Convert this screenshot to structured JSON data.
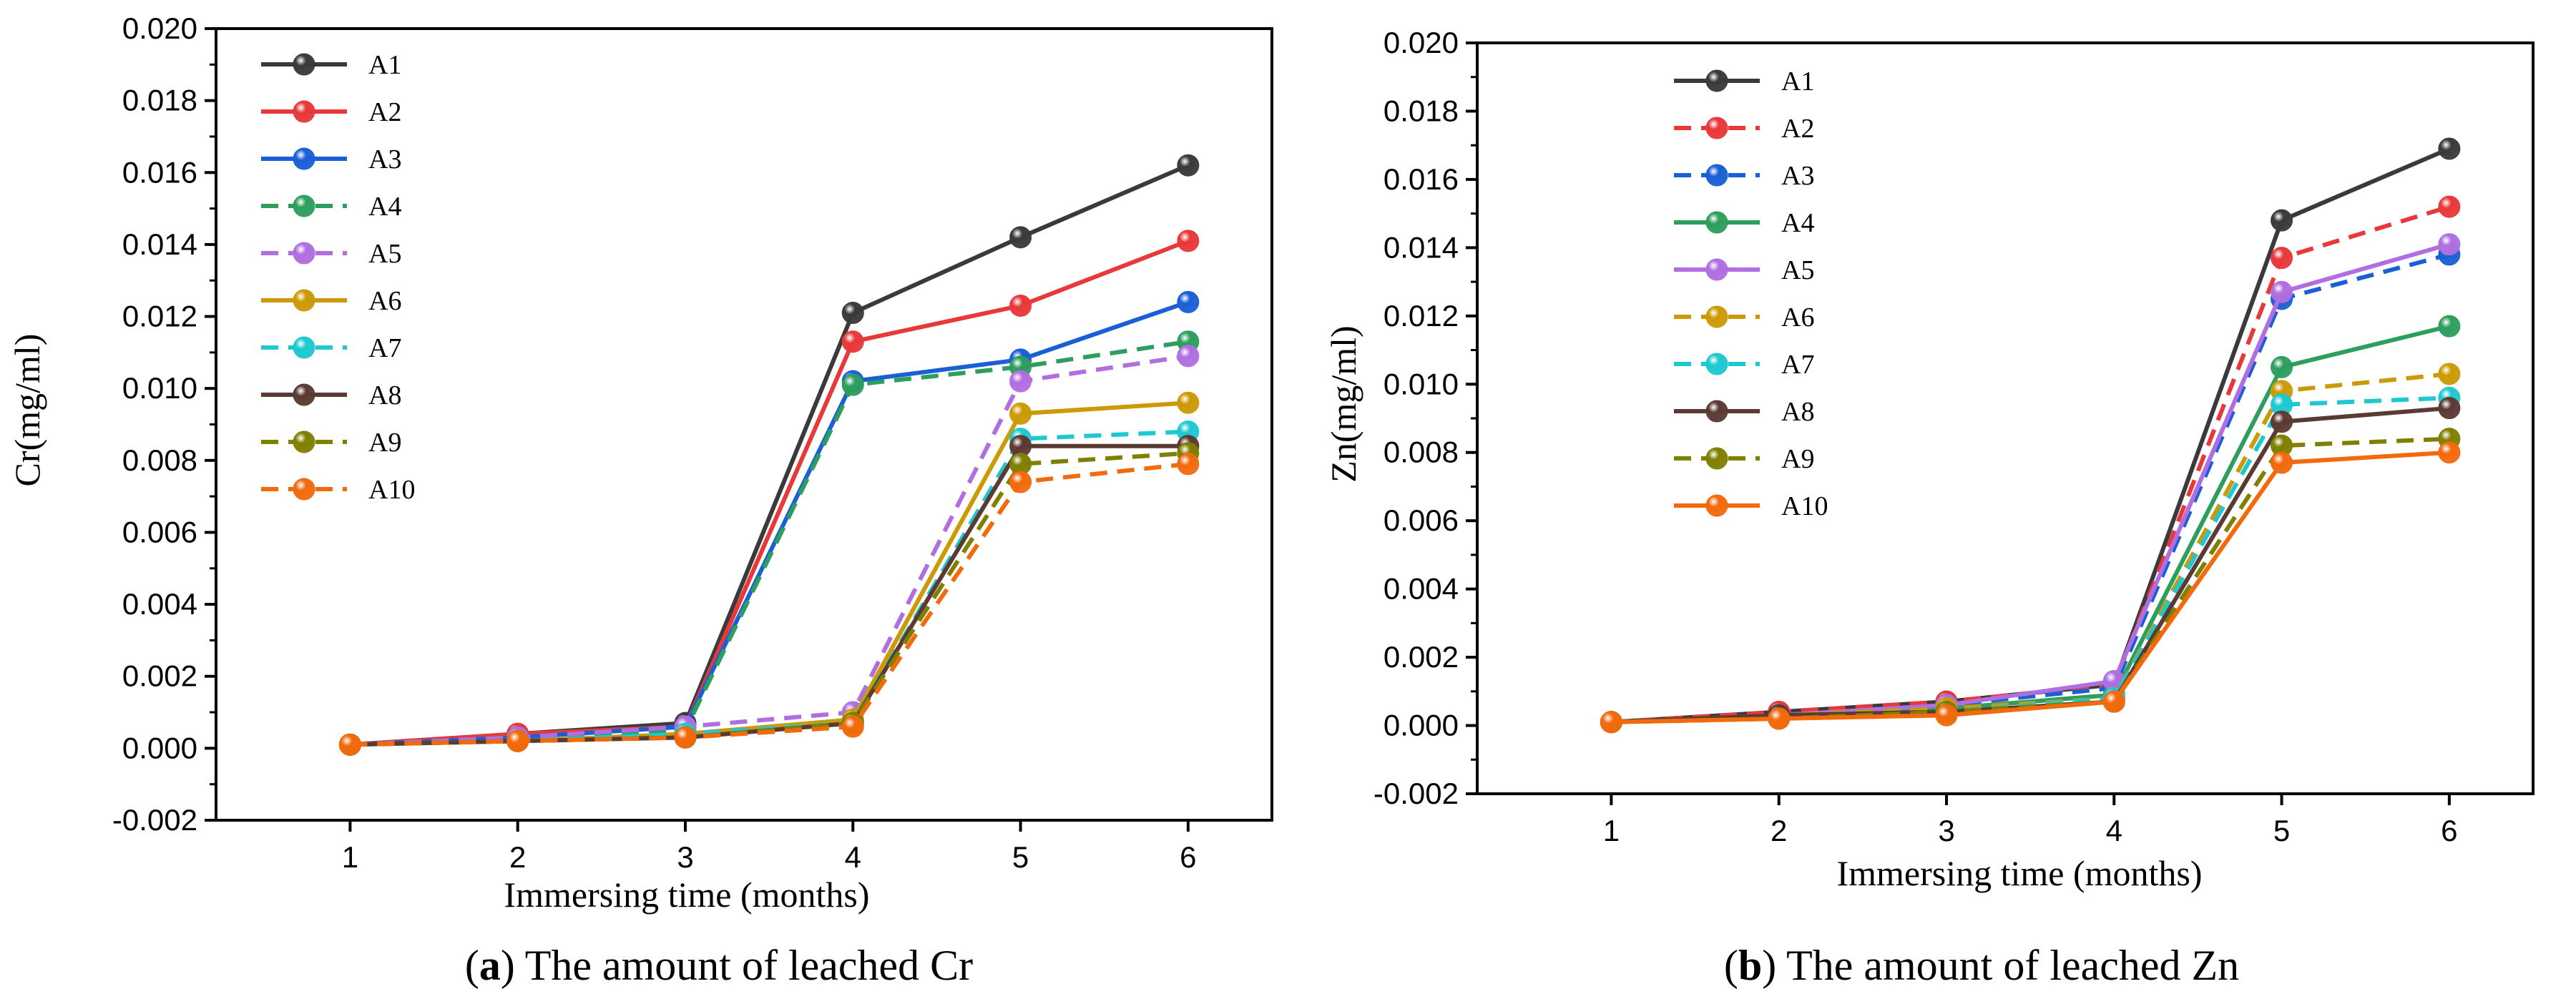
{
  "colors": {
    "A1": "#3a3a3a",
    "A2": "#e8383a",
    "A3": "#1a5fd6",
    "A4": "#2e9e5e",
    "A5": "#b06ee0",
    "A6": "#cc9a06",
    "A7": "#1ec8d0",
    "A8": "#5c3a34",
    "A9": "#7f7f00",
    "A10": "#f26a0c"
  },
  "captions": {
    "a_letter": "a",
    "a_text": "The amount of leached Cr",
    "b_letter": "b",
    "b_text": "The amount of leached Zn"
  },
  "chart_data": [
    {
      "type": "line",
      "title": "The amount of leached Cr",
      "xlabel": "Immersing time (months)",
      "ylabel": "Cr(mg/ml)",
      "x": [
        1,
        2,
        3,
        4,
        5,
        6
      ],
      "xticks": [
        "1",
        "2",
        "3",
        "4",
        "5",
        "6"
      ],
      "xlim": [
        0.2,
        6.5
      ],
      "ylim": [
        -0.002,
        0.02
      ],
      "yticks": [
        "-0.002",
        "0.000",
        "0.002",
        "0.004",
        "0.006",
        "0.008",
        "0.010",
        "0.012",
        "0.014",
        "0.016",
        "0.018",
        "0.020"
      ],
      "legend_position": "top-left",
      "series": [
        {
          "name": "A1",
          "style": "solid",
          "values": [
            0.0001,
            0.0004,
            0.0007,
            0.0121,
            0.0142,
            0.0162
          ]
        },
        {
          "name": "A2",
          "style": "solid",
          "values": [
            0.0001,
            0.0004,
            0.0006,
            0.0113,
            0.0123,
            0.0141
          ]
        },
        {
          "name": "A3",
          "style": "solid",
          "values": [
            0.0001,
            0.0003,
            0.0006,
            0.0102,
            0.0108,
            0.0124
          ]
        },
        {
          "name": "A4",
          "style": "dashed",
          "values": [
            0.0001,
            0.0003,
            0.0005,
            0.0101,
            0.0106,
            0.0113
          ]
        },
        {
          "name": "A5",
          "style": "dashed",
          "values": [
            0.0001,
            0.0003,
            0.0006,
            0.001,
            0.0102,
            0.0109
          ]
        },
        {
          "name": "A6",
          "style": "solid",
          "values": [
            0.0001,
            0.0002,
            0.0004,
            0.0008,
            0.0093,
            0.0096
          ]
        },
        {
          "name": "A7",
          "style": "dashed",
          "values": [
            0.0001,
            0.0002,
            0.0004,
            0.0007,
            0.0086,
            0.0088
          ]
        },
        {
          "name": "A8",
          "style": "solid",
          "values": [
            0.0001,
            0.0002,
            0.0003,
            0.0007,
            0.0084,
            0.0084
          ]
        },
        {
          "name": "A9",
          "style": "dashed",
          "values": [
            0.0001,
            0.0002,
            0.0003,
            0.0007,
            0.0079,
            0.0082
          ]
        },
        {
          "name": "A10",
          "style": "dashed",
          "values": [
            0.0001,
            0.0002,
            0.0003,
            0.0006,
            0.0074,
            0.0079
          ]
        }
      ]
    },
    {
      "type": "line",
      "title": "The amount of leached Zn",
      "xlabel": "Immersing time (months)",
      "ylabel": "Zn(mg/ml)",
      "x": [
        1,
        2,
        3,
        4,
        5,
        6
      ],
      "xticks": [
        "1",
        "2",
        "3",
        "4",
        "5",
        "6"
      ],
      "xlim": [
        0.2,
        6.5
      ],
      "ylim": [
        -0.002,
        0.02
      ],
      "yticks": [
        "-0.002",
        "0.000",
        "0.002",
        "0.004",
        "0.006",
        "0.008",
        "0.010",
        "0.012",
        "0.014",
        "0.016",
        "0.018",
        "0.020"
      ],
      "legend_position": "top-left",
      "series": [
        {
          "name": "A1",
          "style": "solid",
          "values": [
            0.0001,
            0.0004,
            0.0007,
            0.0012,
            0.0148,
            0.0169
          ]
        },
        {
          "name": "A2",
          "style": "dashed",
          "values": [
            0.0001,
            0.0004,
            0.0007,
            0.0012,
            0.0137,
            0.0152
          ]
        },
        {
          "name": "A3",
          "style": "dashed",
          "values": [
            0.0001,
            0.0003,
            0.0006,
            0.0011,
            0.0125,
            0.0138
          ]
        },
        {
          "name": "A4",
          "style": "solid",
          "values": [
            0.0001,
            0.0003,
            0.0005,
            0.0009,
            0.0105,
            0.0117
          ]
        },
        {
          "name": "A5",
          "style": "solid",
          "values": [
            0.0001,
            0.0003,
            0.0006,
            0.0013,
            0.0127,
            0.0141
          ]
        },
        {
          "name": "A6",
          "style": "dashed",
          "values": [
            0.0001,
            0.0003,
            0.0005,
            0.0008,
            0.0098,
            0.0103
          ]
        },
        {
          "name": "A7",
          "style": "dashed",
          "values": [
            0.0001,
            0.0003,
            0.0004,
            0.0008,
            0.0094,
            0.0096
          ]
        },
        {
          "name": "A8",
          "style": "solid",
          "values": [
            0.0001,
            0.0003,
            0.0004,
            0.0007,
            0.0089,
            0.0093
          ]
        },
        {
          "name": "A9",
          "style": "dashed",
          "values": [
            0.0001,
            0.0002,
            0.0004,
            0.0007,
            0.0082,
            0.0084
          ]
        },
        {
          "name": "A10",
          "style": "solid",
          "values": [
            0.0001,
            0.0002,
            0.0003,
            0.0007,
            0.0077,
            0.008
          ]
        }
      ]
    }
  ]
}
